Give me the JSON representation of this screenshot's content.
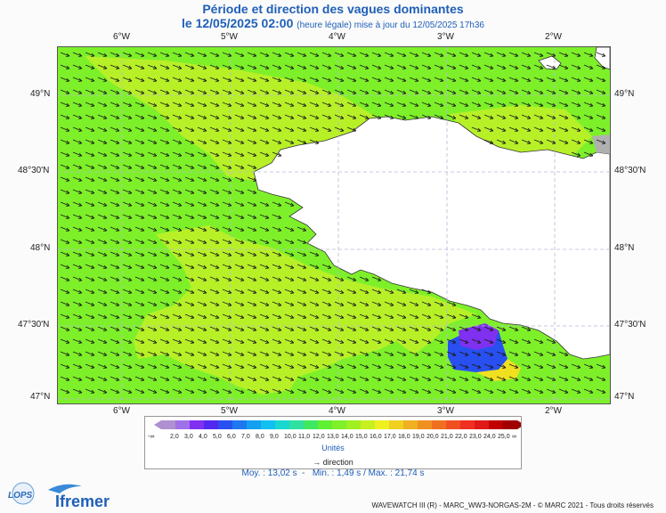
{
  "title_line1": "Période et direction des vagues dominantes",
  "title_date": "le 12/05/2025 02:00",
  "title_note": "(heure légale) mise à jour du 12/05/2025 17h36",
  "lon_labels": [
    "6°W",
    "5°W",
    "4°W",
    "3°W",
    "2°W"
  ],
  "lat_labels": [
    "49°N",
    "48°30'N",
    "48°N",
    "47°30'N",
    "47°N"
  ],
  "legend": {
    "left_cap": "-∞",
    "right_cap": "∞",
    "values": [
      "2,0",
      "3,0",
      "4,0",
      "5,0",
      "6,0",
      "7,0",
      "8,0",
      "9,0",
      "10,0",
      "11,0",
      "12,0",
      "13,0",
      "14,0",
      "15,0",
      "16,0",
      "17,0",
      "18,0",
      "19,0",
      "20,0",
      "21,0",
      "22,0",
      "23,0",
      "24,0",
      "25,0"
    ],
    "colors": [
      "#b090d0",
      "#a070e8",
      "#8030f0",
      "#5028f0",
      "#2850f0",
      "#1e78f0",
      "#14a0f0",
      "#10c0f0",
      "#18d8d0",
      "#30e0a0",
      "#40e860",
      "#60f030",
      "#80f028",
      "#a0f020",
      "#c8f020",
      "#f0f020",
      "#f0d020",
      "#f0b020",
      "#f09020",
      "#f07020",
      "#f05020",
      "#f03020",
      "#e01818",
      "#c00000",
      "#a00000"
    ],
    "unit": "Unités",
    "direction_label": "direction"
  },
  "stats": {
    "moy": "Moy. : 13,02 s",
    "min": "Min. : 1,49 s",
    "max": "Max. : 21,74 s"
  },
  "logos": {
    "lops": "LOPS",
    "ifremer": "Ifremer"
  },
  "credit": "WAVEWATCH III (R) - MARC_WW3-NORGAS-2M - © MARC 2021 - Tous droits réservés"
}
